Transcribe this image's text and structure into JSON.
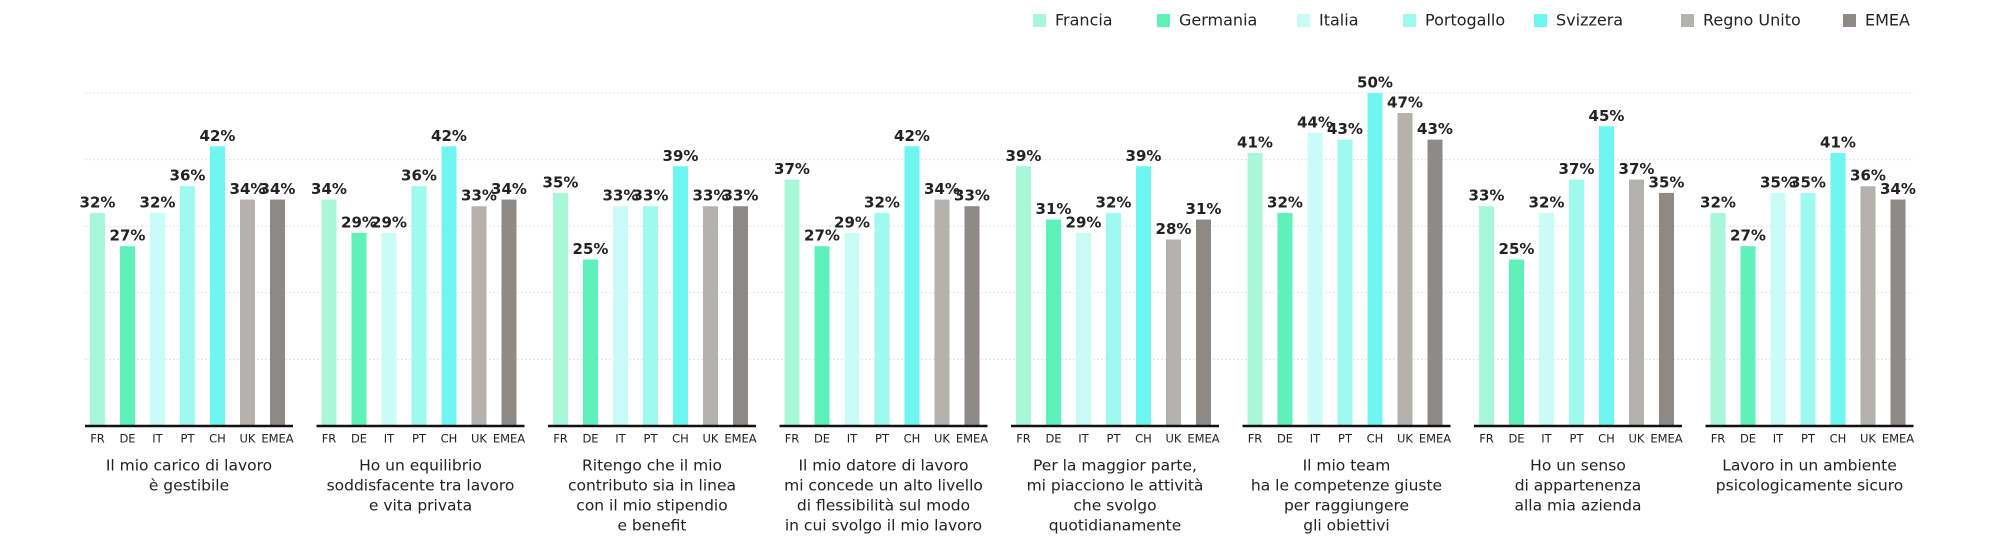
{
  "chart_data": {
    "type": "bar",
    "categories": [
      [
        "Il mio carico di lavoro",
        "è gestibile"
      ],
      [
        "Ho un equilibrio",
        "soddisfacente tra lavoro",
        "e vita privata"
      ],
      [
        "Ritengo che il mio",
        "contributo sia in linea",
        "con il mio stipendio",
        "e benefit"
      ],
      [
        "Il mio datore di lavoro",
        "mi concede un alto livello",
        "di flessibilità sul modo",
        "in cui svolgo il mio lavoro"
      ],
      [
        "Per la maggior parte,",
        "mi piacciono le attività",
        "che svolgo",
        "quotidianamente"
      ],
      [
        "Il mio team",
        "ha le competenze giuste",
        "per raggiungere",
        "gli obiettivi"
      ],
      [
        "Ho un senso",
        "di appartenenza",
        "alla mia azienda"
      ],
      [
        "Lavoro in un ambiente",
        "psicologicamente sicuro"
      ]
    ],
    "series": [
      {
        "name": "Francia",
        "code": "FR",
        "color": "#a9f7da",
        "values": [
          32,
          34,
          35,
          37,
          39,
          41,
          33,
          32
        ],
        "value_labels": [
          "32%",
          "34%",
          "35%",
          "37%",
          "39%",
          "41%",
          "33%",
          "32%"
        ]
      },
      {
        "name": "Germania",
        "code": "DE",
        "color": "#5ef1b9",
        "values": [
          27,
          29,
          25,
          27,
          31,
          32,
          25,
          27
        ],
        "value_labels": [
          "27%",
          "29%",
          "25%",
          "27%",
          "31%",
          "32%",
          "25%",
          "27%"
        ]
      },
      {
        "name": "Italia",
        "code": "IT",
        "color": "#c9fcf6",
        "values": [
          32,
          29,
          33,
          29,
          29,
          44,
          32,
          35
        ],
        "value_labels": [
          "32%",
          "29%",
          "33%",
          "29%",
          "29%",
          "44%",
          "32%",
          "35%"
        ]
      },
      {
        "name": "Portogallo",
        "code": "PT",
        "color": "#9ef9ef",
        "values": [
          36,
          36,
          33,
          32,
          32,
          43,
          37,
          35
        ],
        "value_labels": [
          "36%",
          "36%",
          "33%",
          "32%",
          "32%",
          "43%",
          "37%",
          "35%"
        ]
      },
      {
        "name": "Svizzera",
        "code": "CH",
        "color": "#6ff6f0",
        "values": [
          42,
          42,
          39,
          42,
          39,
          50,
          45,
          41
        ],
        "value_labels": [
          "42%",
          "42%",
          "39%",
          "42%",
          "39%",
          "50%",
          "45%",
          "41%"
        ]
      },
      {
        "name": "Regno Unito",
        "code": "UK",
        "color": "#b4b2af",
        "values": [
          34,
          33,
          33,
          34,
          28,
          47,
          37,
          36
        ],
        "value_labels": [
          "34%",
          "33%",
          "33%",
          "34%",
          "28%",
          "47%",
          "37%",
          "36%"
        ]
      },
      {
        "name": "EMEA",
        "code": "EMEA",
        "color": "#8d8a88",
        "values": [
          34,
          34,
          33,
          33,
          31,
          43,
          35,
          34
        ],
        "value_labels": [
          "34%",
          "34%",
          "33%",
          "33%",
          "31%",
          "43%",
          "35%",
          "34%"
        ]
      }
    ],
    "ylim": [
      0,
      50
    ],
    "yticks": [
      0,
      10,
      20,
      30,
      40,
      50
    ],
    "grid": true,
    "legend": "top-right"
  }
}
